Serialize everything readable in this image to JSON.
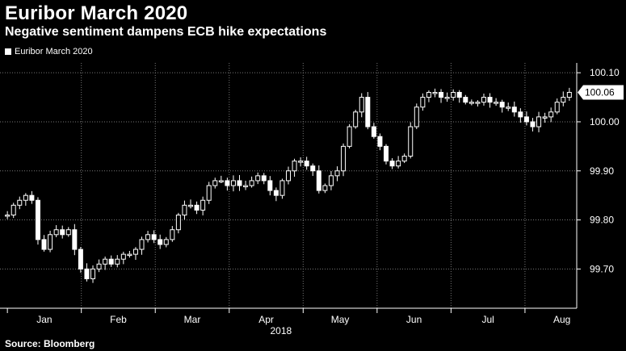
{
  "title": "Euribor March 2020",
  "subtitle": "Negative sentiment dampens ECB hike expectations",
  "legend": {
    "label": "Euribor March 2020"
  },
  "source": "Source: Bloomberg",
  "chart_data": {
    "type": "candlestick",
    "title": "Euribor March 2020",
    "subtitle": "Negative sentiment dampens ECB hike expectations",
    "series_name": "Euribor March 2020",
    "ylim": [
      99.62,
      100.12
    ],
    "y_ticks": [
      "99.70",
      "99.80",
      "99.90",
      "100.00",
      "100.10"
    ],
    "x_tick_labels": [
      "Jan",
      "Feb",
      "Mar",
      "Apr",
      "May",
      "Jun",
      "Jul",
      "Aug"
    ],
    "x_year_label": "2018",
    "x_range_months": [
      -0.1,
      7.7
    ],
    "last_value": "100.06",
    "grid": "dotted",
    "y_axis_side": "right",
    "legend_position": "top-left",
    "ohlc_close_path": [
      99.81,
      99.83,
      99.84,
      99.85,
      99.84,
      99.76,
      99.74,
      99.77,
      99.78,
      99.77,
      99.78,
      99.74,
      99.7,
      99.68,
      99.7,
      99.71,
      99.72,
      99.71,
      99.72,
      99.73,
      99.73,
      99.74,
      99.76,
      99.77,
      99.76,
      99.75,
      99.76,
      99.78,
      99.81,
      99.83,
      99.83,
      99.82,
      99.84,
      99.87,
      99.88,
      99.88,
      99.87,
      99.88,
      99.87,
      99.87,
      99.88,
      99.89,
      99.88,
      99.86,
      99.85,
      99.88,
      99.9,
      99.92,
      99.92,
      99.91,
      99.9,
      99.86,
      99.87,
      99.89,
      99.9,
      99.95,
      99.99,
      100.02,
      100.05,
      99.99,
      99.97,
      99.95,
      99.92,
      99.91,
      99.92,
      99.93,
      99.99,
      100.03,
      100.05,
      100.06,
      100.06,
      100.05,
      100.05,
      100.06,
      100.05,
      100.04,
      100.04,
      100.04,
      100.05,
      100.04,
      100.04,
      100.03,
      100.03,
      100.02,
      100.01,
      100.0,
      99.99,
      100.01,
      100.01,
      100.02,
      100.04,
      100.05,
      100.06
    ]
  }
}
